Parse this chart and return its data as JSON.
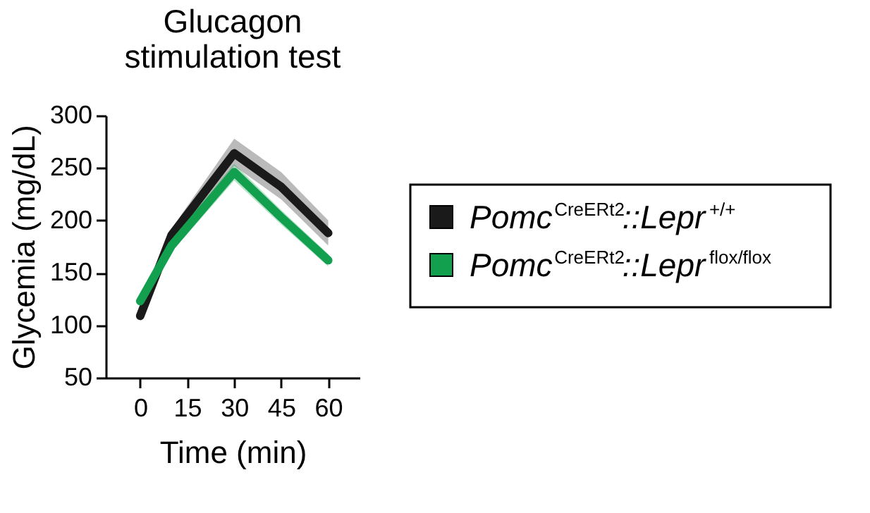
{
  "chart_data": {
    "type": "line",
    "title": "Glucagon stimulation test",
    "xlabel": "Time (min)",
    "ylabel": "Glycemia (mg/dL)",
    "x": [
      0,
      10,
      30,
      45,
      60
    ],
    "xlim": [
      -11,
      70
    ],
    "xticks": [
      0,
      15,
      30,
      45,
      60
    ],
    "ylim": [
      50,
      300
    ],
    "yticks": [
      50,
      100,
      150,
      200,
      250,
      300
    ],
    "grid": false,
    "legend": "right",
    "marker": "none",
    "line_style": "solid",
    "series": [
      {
        "name": "Pomc$^{CreERt2}$::Lepr$^{+/+}$",
        "color": "#1a1a1a",
        "values": [
          109,
          186,
          264,
          232,
          188
        ],
        "lower": [
          104,
          180,
          252,
          220,
          176
        ],
        "upper": [
          114,
          192,
          278,
          246,
          200
        ]
      },
      {
        "name": "Pomc$^{CreERt2}$::Lepr$^{flox/flox}$",
        "color": "#12a04e",
        "values": [
          123,
          176,
          246,
          203,
          162
        ],
        "lower": [
          118,
          170,
          238,
          196,
          156
        ],
        "upper": [
          128,
          182,
          254,
          210,
          168
        ]
      }
    ]
  }
}
